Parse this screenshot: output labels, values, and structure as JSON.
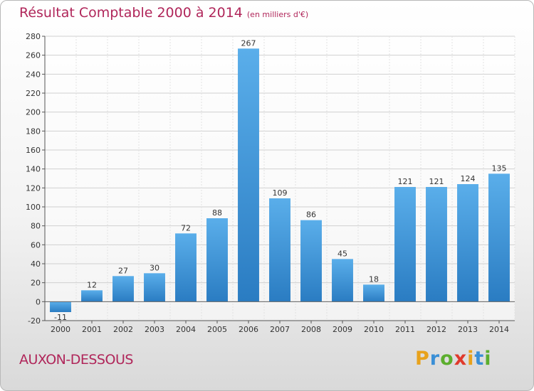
{
  "header": {
    "title": "Résultat Comptable 2000 à 2014",
    "subtitle": "(en milliers d'€)"
  },
  "footer": {
    "commune": "AUXON-DESSOUS",
    "logo": {
      "letters": [
        "P",
        "r",
        "o",
        "x",
        "i",
        "t",
        "i"
      ],
      "colors": [
        "#e8a21c",
        "#3a8fd6",
        "#5cae2e",
        "#e03a2c",
        "#e8a21c",
        "#3a8fd6",
        "#5cae2e"
      ]
    }
  },
  "chart_data": {
    "type": "bar",
    "categories": [
      "2000",
      "2001",
      "2002",
      "2003",
      "2004",
      "2005",
      "2006",
      "2007",
      "2008",
      "2009",
      "2010",
      "2011",
      "2012",
      "2013",
      "2014"
    ],
    "values": [
      -11,
      12,
      27,
      30,
      72,
      88,
      267,
      109,
      86,
      45,
      18,
      121,
      121,
      124,
      135
    ],
    "title": "Résultat Comptable 2000 à 2014",
    "subtitle": "(en milliers d'€)",
    "ylim": [
      -20,
      280
    ],
    "yticks": [
      -20,
      0,
      20,
      40,
      60,
      80,
      100,
      120,
      140,
      160,
      180,
      200,
      220,
      240,
      260,
      280
    ],
    "grid": true,
    "bar_color": "#3d94d8"
  }
}
